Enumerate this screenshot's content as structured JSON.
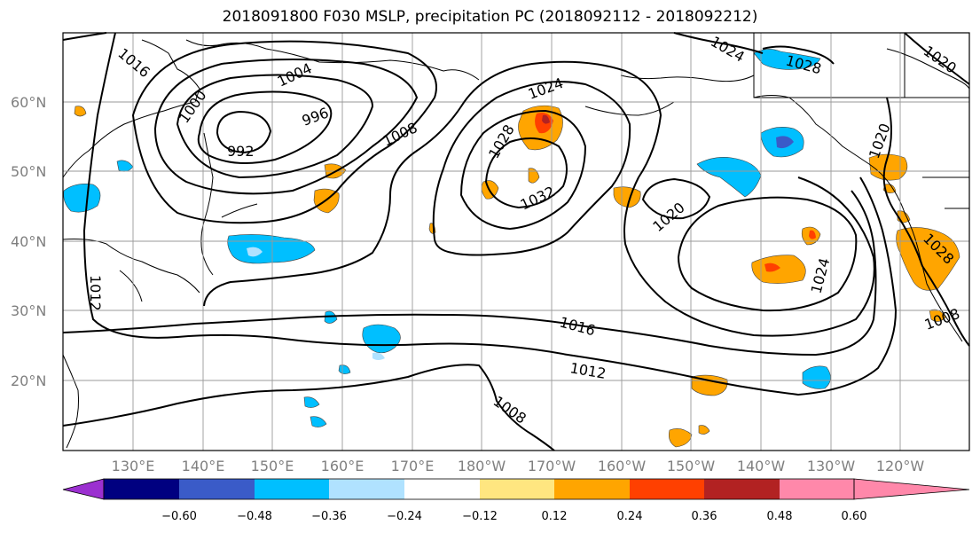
{
  "title": "2018091800 F030 MSLP, precipitation PC (2018092112 - 2018092212)",
  "lat_labels": [
    "60°N",
    "50°N",
    "40°N",
    "30°N",
    "20°N"
  ],
  "lon_labels": [
    "130°E",
    "140°E",
    "150°E",
    "160°E",
    "170°E",
    "180°W",
    "170°W",
    "160°W",
    "150°W",
    "140°W",
    "130°W",
    "120°W"
  ],
  "colorbar": {
    "ticks": [
      "−0.60",
      "−0.48",
      "−0.36",
      "−0.24",
      "−0.12",
      "0.12",
      "0.24",
      "0.36",
      "0.48",
      "0.60"
    ],
    "colors": [
      "#9b30d0",
      "#000080",
      "#3a5bc8",
      "#00bfff",
      "#b0e2ff",
      "#ffffff",
      "#ffe680",
      "#ffa500",
      "#ff4000",
      "#b22222",
      "#ff88aa"
    ]
  },
  "isobar_labels": [
    "1016",
    "1004",
    "1000",
    "996",
    "992",
    "1008",
    "1024",
    "1028",
    "1032",
    "1020",
    "1024",
    "1028",
    "1020",
    "1012",
    "1016",
    "1012",
    "1008",
    "1024",
    "1020",
    "1028",
    "1008"
  ]
}
